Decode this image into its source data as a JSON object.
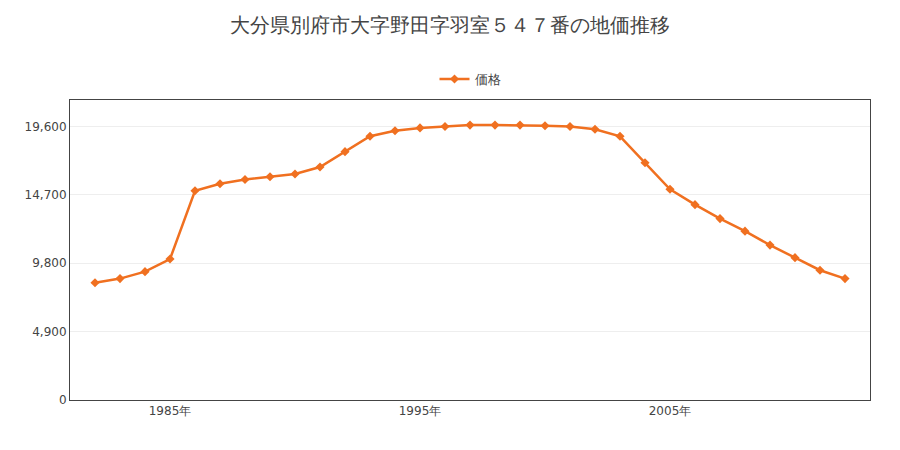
{
  "chart_data": {
    "type": "line",
    "title": "大分県別府市大字野田字羽室５４７番の地価推移",
    "x": [
      1982,
      1983,
      1984,
      1985,
      1986,
      1987,
      1988,
      1989,
      1990,
      1991,
      1992,
      1993,
      1994,
      1995,
      1996,
      1997,
      1998,
      1999,
      2000,
      2001,
      2002,
      2003,
      2004,
      2005,
      2006,
      2007,
      2008,
      2009,
      2010,
      2011,
      2012
    ],
    "series": [
      {
        "name": "価格",
        "color": "#f07020",
        "marker": "diamond",
        "line_style": "solid",
        "values": [
          8400,
          8700,
          9200,
          10100,
          15000,
          15500,
          15800,
          16000,
          16200,
          16700,
          17800,
          18900,
          19300,
          19500,
          19600,
          19700,
          19700,
          19700,
          19650,
          19600,
          19400,
          18900,
          17000,
          15100,
          14000,
          13000,
          12100,
          11100,
          10200,
          9300,
          8700
        ]
      }
    ],
    "xlim": [
      1981,
      2013
    ],
    "xticks": [
      {
        "value": 1985,
        "label": "1985年"
      },
      {
        "value": 1995,
        "label": "1995年"
      },
      {
        "value": 2005,
        "label": "2005年"
      }
    ],
    "ylim": [
      0,
      21500
    ],
    "yticks": [
      0,
      {
        "value": 4900,
        "label": "4,900"
      },
      {
        "value": 9800,
        "label": "9,800"
      },
      {
        "value": 14700,
        "label": "14,700"
      },
      {
        "value": 19600,
        "label": "19,600"
      }
    ],
    "grid": true,
    "legend": "top"
  }
}
